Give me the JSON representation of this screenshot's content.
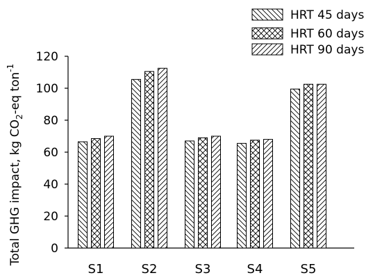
{
  "chart_data": {
    "type": "bar",
    "categories": [
      "S1",
      "S2",
      "S3",
      "S4",
      "S5"
    ],
    "series": [
      {
        "name": "HRT 45 days",
        "pattern": "backslash",
        "values": [
          66.5,
          105.5,
          67,
          65.5,
          99.5
        ]
      },
      {
        "name": "HRT 60 days",
        "pattern": "crosshatch",
        "values": [
          68.5,
          110.5,
          69,
          67.5,
          102.5
        ]
      },
      {
        "name": "HRT 90 days",
        "pattern": "slash",
        "values": [
          70,
          112.5,
          70,
          68,
          102.5
        ]
      }
    ],
    "ylabel_parts": {
      "main": "Total GHG impact, kg CO",
      "sub": "2",
      "mid": "-eq ton",
      "sup": "-1"
    },
    "xlabel": "",
    "ylim": [
      0,
      120
    ],
    "yticks": [
      0,
      20,
      40,
      60,
      80,
      100,
      120
    ],
    "grid": false,
    "legend": "top-right",
    "colors": {
      "stroke": "#000000",
      "background": "#ffffff"
    }
  }
}
